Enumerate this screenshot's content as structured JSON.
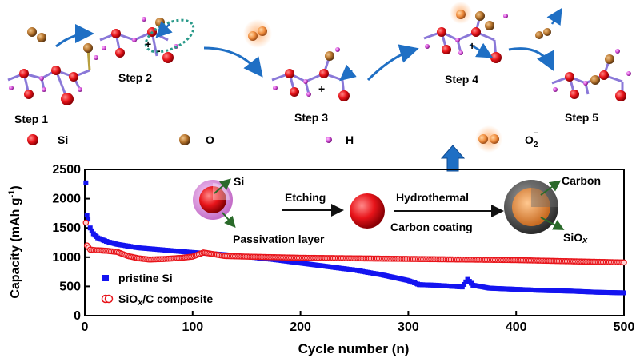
{
  "mechanism": {
    "steps": [
      "Step 1",
      "Step 2",
      "Step 3",
      "Step 4",
      "Step 5"
    ],
    "legend": [
      {
        "symbol": "Si",
        "label": "Si",
        "color": "#e8141a"
      },
      {
        "symbol": "O",
        "label": "O",
        "color": "#b8762e"
      },
      {
        "symbol": "H",
        "label": "H",
        "color": "#d24bd6"
      },
      {
        "symbol": "O2-",
        "label": "O",
        "superscript": "−",
        "subscript": "2",
        "color": "#f08c3c"
      }
    ],
    "charge_plus": "+",
    "charge_minus": "-"
  },
  "synthesis": {
    "arrow1_label": "Etching",
    "arrow2_label_top": "Hydrothermal",
    "arrow2_label_bottom": "Carbon coating",
    "sphere1_core_label": "Si",
    "sphere1_shell_label": "Passivation layer",
    "sphere3_shell_label": "Carbon",
    "sphere3_core_label": "SiO",
    "sphere3_core_label_sub": "x"
  },
  "colors": {
    "si": "#e8141a",
    "oxygen": "#b8762e",
    "hydrogen": "#d24bd6",
    "bond": "#8a78d8",
    "arrow": "#1f6fc4",
    "pristine": "#1414f0",
    "composite": "#e8141a",
    "passivation": "#e6a0e6",
    "carbon_shell": "#4a4a4a",
    "siox_core": "#e08a3c"
  },
  "chart_data": {
    "type": "scatter",
    "xlabel": "Cycle number (n)",
    "ylabel": "Capacity (mAh g",
    "ylabel_sup": "-1",
    "ylabel_close": ")",
    "xlim": [
      0,
      500
    ],
    "ylim": [
      0,
      2500
    ],
    "xticks": [
      "0",
      "100",
      "200",
      "300",
      "400",
      "500"
    ],
    "yticks": [
      "0",
      "500",
      "1000",
      "1500",
      "2000",
      "2500"
    ],
    "legend_position": "lower-left",
    "series": [
      {
        "name": "pristine Si",
        "marker": "square",
        "color": "#1414f0",
        "points": [
          [
            1,
            2270
          ],
          [
            2,
            1720
          ],
          [
            3,
            1650
          ],
          [
            5,
            1500
          ],
          [
            8,
            1400
          ],
          [
            12,
            1330
          ],
          [
            20,
            1270
          ],
          [
            30,
            1220
          ],
          [
            50,
            1160
          ],
          [
            75,
            1120
          ],
          [
            100,
            1080
          ],
          [
            125,
            1050
          ],
          [
            150,
            1010
          ],
          [
            175,
            960
          ],
          [
            200,
            900
          ],
          [
            225,
            840
          ],
          [
            250,
            780
          ],
          [
            275,
            700
          ],
          [
            300,
            600
          ],
          [
            310,
            530
          ],
          [
            325,
            520
          ],
          [
            350,
            490
          ],
          [
            355,
            620
          ],
          [
            360,
            520
          ],
          [
            375,
            470
          ],
          [
            400,
            450
          ],
          [
            425,
            430
          ],
          [
            450,
            420
          ],
          [
            475,
            400
          ],
          [
            500,
            390
          ]
        ]
      },
      {
        "name": "SiOx/C composite",
        "name_parts": [
          "SiO",
          "x",
          "/C composite"
        ],
        "marker": "circle",
        "color": "#e8141a",
        "points": [
          [
            1,
            1590
          ],
          [
            2,
            1200
          ],
          [
            5,
            1130
          ],
          [
            10,
            1120
          ],
          [
            20,
            1110
          ],
          [
            30,
            1090
          ],
          [
            40,
            1020
          ],
          [
            50,
            980
          ],
          [
            60,
            960
          ],
          [
            75,
            970
          ],
          [
            90,
            990
          ],
          [
            100,
            1010
          ],
          [
            110,
            1080
          ],
          [
            120,
            1050
          ],
          [
            130,
            1020
          ],
          [
            150,
            1010
          ],
          [
            175,
            1000
          ],
          [
            200,
            990
          ],
          [
            250,
            980
          ],
          [
            300,
            970
          ],
          [
            350,
            960
          ],
          [
            400,
            950
          ],
          [
            450,
            930
          ],
          [
            500,
            910
          ]
        ]
      }
    ]
  }
}
